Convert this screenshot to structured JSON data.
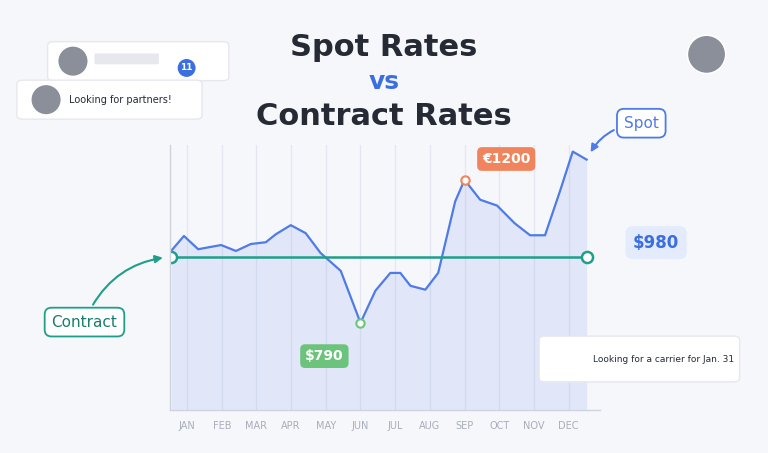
{
  "chart_data": {
    "type": "line",
    "title": [
      "Spot Rates",
      "vs",
      "Contract Rates"
    ],
    "xlim": [
      0.5,
      12.9
    ],
    "xticks": [
      {
        "value": 1,
        "label": "JAN"
      },
      {
        "value": 2,
        "label": "FEB"
      },
      {
        "value": 3,
        "label": "MAR"
      },
      {
        "value": 4,
        "label": "APR"
      },
      {
        "value": 5,
        "label": "MAY"
      },
      {
        "value": 6,
        "label": "JUN"
      },
      {
        "value": 7,
        "label": "JUL"
      },
      {
        "value": 8,
        "label": "AUG"
      },
      {
        "value": 9,
        "label": "SEP"
      },
      {
        "value": 10,
        "label": "OCT"
      },
      {
        "value": 11,
        "label": "NOV"
      },
      {
        "value": 12,
        "label": "DEC"
      }
    ],
    "ylim": [
      540,
      1300
    ],
    "yticks": [],
    "grid": true,
    "legend": false,
    "tick_labels": "x",
    "series": [
      {
        "name": "Spot",
        "type": "area",
        "color": "#4f7be8",
        "x": [
          0.54,
          0.91,
          1.32,
          1.98,
          2.41,
          2.84,
          3.27,
          3.56,
          3.99,
          4.42,
          4.85,
          5.43,
          6.0,
          6.43,
          6.86,
          7.15,
          7.44,
          7.87,
          8.24,
          8.73,
          9.0,
          9.45,
          9.94,
          10.45,
          10.89,
          11.32,
          11.75,
          12.12,
          12.52
        ],
        "values": [
          996,
          1039,
          1001,
          1013,
          996,
          1016,
          1021,
          1044,
          1070,
          1047,
          990,
          939,
          790,
          882,
          933,
          933,
          896,
          885,
          933,
          1138,
          1200,
          1143,
          1126,
          1075,
          1041,
          1041,
          1167,
          1281,
          1258
        ]
      },
      {
        "name": "Contract",
        "type": "line",
        "color": "#1f9e8a",
        "marker": "circle",
        "x": [
          0.54,
          12.52
        ],
        "values": [
          980,
          980
        ]
      }
    ],
    "annotations": [
      {
        "text": "€1200",
        "x": 9.0,
        "y": 1200,
        "color": "#f0845c"
      },
      {
        "text": "$790",
        "x": 6.0,
        "y": 790,
        "color": "#6cc47c"
      },
      {
        "text": "$980",
        "x": 12.52,
        "y": 980,
        "color": "#3b6fe0"
      }
    ],
    "messages": [
      "Looking for partners!",
      "Looking for a carrier for Jan. 31"
    ],
    "badge": 11
  }
}
